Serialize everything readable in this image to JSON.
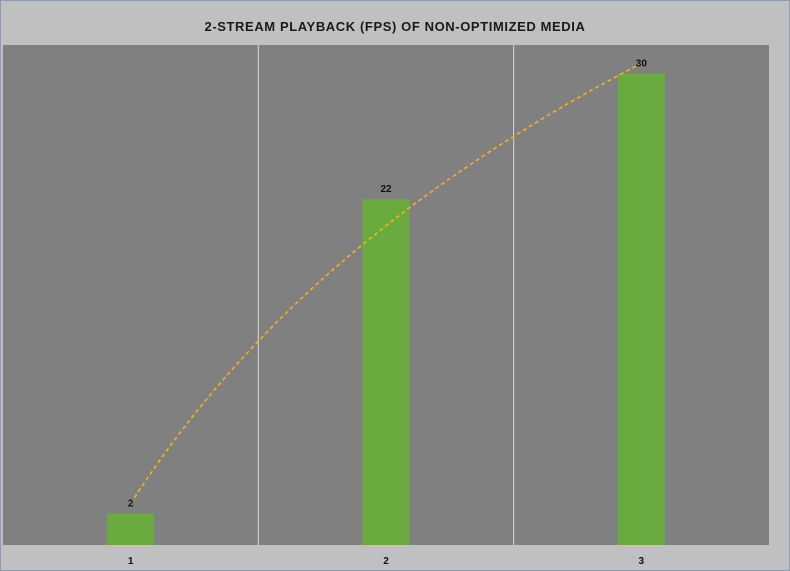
{
  "chart_data": {
    "type": "bar",
    "title": "2-STREAM PLAYBACK (FPS) OF NON-OPTIMIZED MEDIA",
    "categories": [
      "1",
      "2",
      "3"
    ],
    "values": [
      2,
      22,
      30
    ],
    "data_labels": [
      "2",
      "22",
      "30"
    ],
    "ylim": [
      0,
      31.8
    ],
    "grid": "vertical",
    "legend": "none",
    "trendline": {
      "type": "logarithmic",
      "style": "dashed"
    },
    "colors": {
      "bar": "#6aab3f",
      "trendline": "#f0b21a",
      "plot_background": "#808080",
      "chart_background": "#c0c0c0",
      "gridline": "#d8d8d8"
    }
  }
}
